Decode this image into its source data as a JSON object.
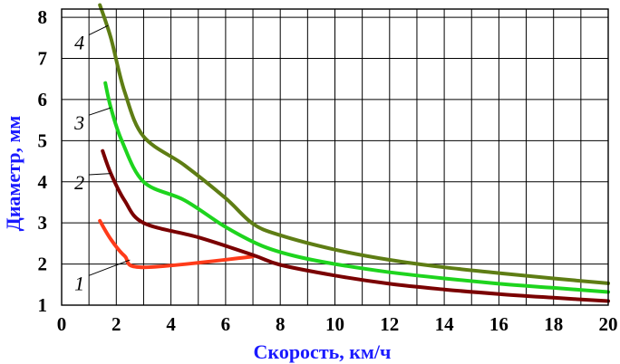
{
  "chart_data": {
    "type": "line",
    "title": "",
    "xlabel": "Скорость, км/ч",
    "ylabel": "Диаметр, мм",
    "xlim": [
      0,
      20
    ],
    "ylim": [
      1,
      8.2
    ],
    "xticks": [
      0,
      2,
      4,
      6,
      8,
      10,
      12,
      14,
      16,
      18,
      20
    ],
    "yticks": [
      1,
      2,
      3,
      4,
      5,
      6,
      7,
      8
    ],
    "grid": true,
    "legend": "inline numbered labels",
    "series": [
      {
        "name": "1",
        "color": "#ff3b1a",
        "x": [
          1.4,
          1.8,
          2.3,
          3.0,
          7.0
        ],
        "y": [
          3.05,
          2.6,
          2.2,
          1.92,
          2.18
        ],
        "label_at": [
          0.6,
          1.5
        ],
        "leader_to": [
          2.5,
          2.1
        ]
      },
      {
        "name": "2",
        "color": "#7a0000",
        "x": [
          1.5,
          1.8,
          2.3,
          3.0,
          5.0,
          7.0,
          8.0,
          10.0,
          12.0,
          14.0,
          16.0,
          18.0,
          20.0
        ],
        "y": [
          4.75,
          4.2,
          3.55,
          3.0,
          2.65,
          2.22,
          1.98,
          1.72,
          1.52,
          1.38,
          1.27,
          1.18,
          1.1
        ],
        "label_at": [
          0.6,
          3.95
        ],
        "leader_to": [
          1.8,
          4.2
        ]
      },
      {
        "name": "3",
        "color": "#1ed41e",
        "x": [
          1.6,
          1.8,
          2.2,
          3.0,
          4.5,
          6.0,
          7.3,
          8.5,
          10.0,
          12.0,
          14.0,
          16.0,
          18.0,
          20.0
        ],
        "y": [
          6.4,
          5.8,
          5.0,
          4.0,
          3.55,
          2.9,
          2.45,
          2.2,
          2.0,
          1.8,
          1.65,
          1.52,
          1.42,
          1.32
        ],
        "label_at": [
          0.6,
          5.4
        ],
        "leader_to": [
          1.8,
          5.8
        ]
      },
      {
        "name": "4",
        "color": "#5e7d14",
        "x": [
          1.4,
          1.8,
          2.3,
          3.0,
          4.5,
          6.0,
          7.0,
          8.0,
          10.0,
          12.0,
          14.0,
          16.0,
          18.0,
          20.0
        ],
        "y": [
          8.3,
          7.5,
          6.2,
          5.1,
          4.4,
          3.6,
          2.98,
          2.7,
          2.35,
          2.1,
          1.92,
          1.78,
          1.65,
          1.53
        ],
        "label_at": [
          0.6,
          7.35
        ],
        "leader_to": [
          1.7,
          7.8
        ]
      }
    ]
  }
}
